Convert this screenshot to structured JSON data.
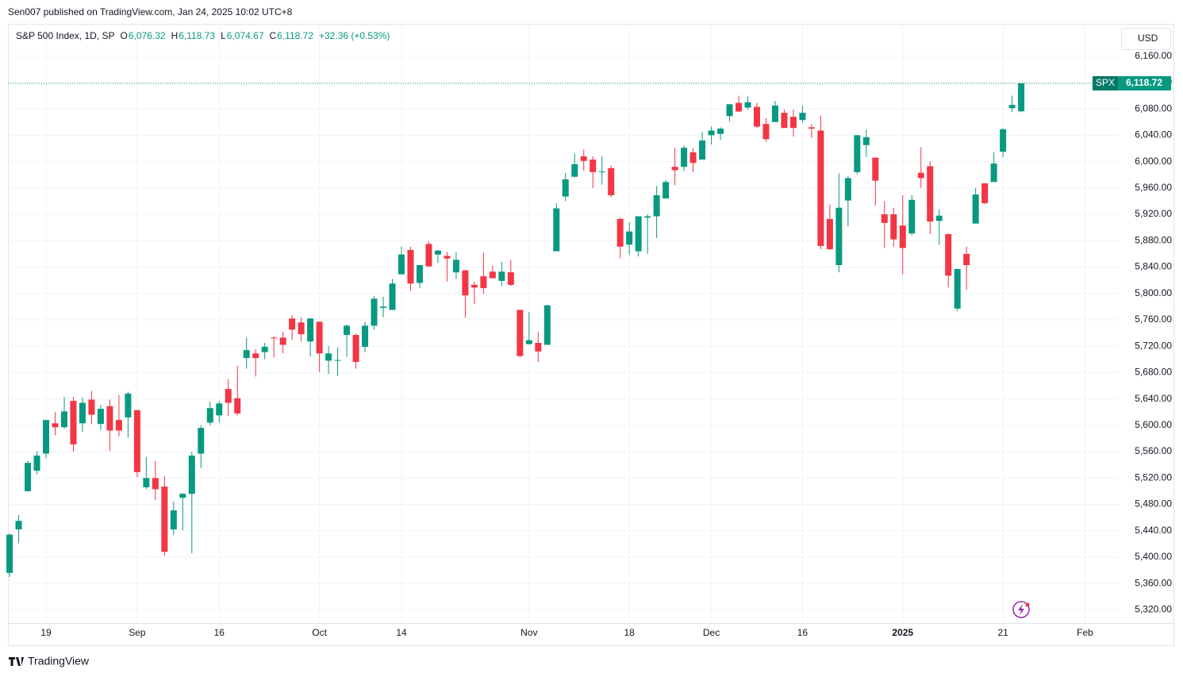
{
  "header": {
    "publisher": "Sen007 published on TradingView.com, Jan 24, 2025 10:02 UTC+8",
    "currency": "USD",
    "brand": "TradingView"
  },
  "chart_data": {
    "type": "candlestick",
    "title": "S&P 500 Index, 1D, SP",
    "legend": [
      {
        "key": "O",
        "text": "6,076.32"
      },
      {
        "key": "H",
        "text": "6,118.73"
      },
      {
        "key": "L",
        "text": "6,074.67"
      },
      {
        "key": "C",
        "text": "6,118.72"
      }
    ],
    "change": "+32.36 (+0.53%)",
    "last_price_label": {
      "symbol": "SPX",
      "text": "6,118.72"
    },
    "up_color": "#089981",
    "down_color": "#f23645",
    "grid": true,
    "open": [
      5376,
      5442,
      5500,
      5531,
      5557,
      5603,
      5597,
      5637,
      5603,
      5639,
      5602,
      5629,
      5608,
      5612,
      5623,
      5506,
      5520,
      5507,
      5442,
      5490,
      5496,
      5557,
      5604,
      5615,
      5655,
      5641,
      5702,
      5709,
      5711,
      5733,
      5733,
      5762,
      5756,
      5727,
      5757,
      5698,
      5698,
      5737,
      5737,
      5719,
      5751,
      5778,
      5775,
      5829,
      5866,
      5816,
      5875,
      5859,
      5857,
      5832,
      5835,
      5813,
      5826,
      5833,
      5819,
      5832,
      5775,
      5723,
      5725,
      5722,
      5864,
      5947,
      5977,
      6008,
      6003,
      5985,
      5990,
      5913,
      5874,
      5864,
      5915,
      5917,
      5944,
      5992,
      5992,
      6014,
      6003,
      6040,
      6042,
      6069,
      6089,
      6082,
      6083,
      6057,
      6060,
      6074,
      6068,
      6063,
      6052,
      6047,
      5913,
      5843,
      5941,
      5984,
      6025,
      6006,
      5920,
      5920,
      5903,
      5891,
      5983,
      5993,
      5910,
      5890,
      5777,
      5860,
      5906,
      5967,
      5969,
      6015,
      6081,
      6076.32
    ],
    "high": [
      5436,
      5464,
      5546,
      5561,
      5608,
      5620,
      5643,
      5643,
      5642,
      5652,
      5631,
      5639,
      5646,
      5651,
      5623,
      5552,
      5546,
      5523,
      5484,
      5497,
      5560,
      5600,
      5636,
      5637,
      5670,
      5690,
      5733,
      5715,
      5725,
      5735,
      5742,
      5767,
      5764,
      5763,
      5757,
      5720,
      5718,
      5753,
      5739,
      5757,
      5796,
      5795,
      5822,
      5871,
      5871,
      5843,
      5879,
      5866,
      5863,
      5863,
      5836,
      5818,
      5862,
      5842,
      5848,
      5851,
      5775,
      5772,
      5742,
      5783,
      5937,
      5983,
      6012,
      6018,
      6008,
      6008,
      5994,
      5915,
      5908,
      5917,
      5920,
      5963,
      5972,
      6021,
      6025,
      6020,
      6045,
      6053,
      6052,
      6087,
      6100,
      6099,
      6089,
      6066,
      6092,
      6079,
      6079,
      6085,
      6057,
      6070,
      5935,
      5982,
      5978,
      6040,
      6049,
      6006,
      5940,
      5930,
      5949,
      5949,
      6022,
      6000,
      5927,
      5891,
      5838,
      5871,
      5960,
      5967,
      6014,
      6051,
      6100,
      6118.73
    ],
    "low": [
      5370,
      5421,
      5500,
      5526,
      5550,
      5585,
      5595,
      5560,
      5590,
      5602,
      5593,
      5561,
      5583,
      5581,
      5521,
      5503,
      5486,
      5402,
      5434,
      5441,
      5406,
      5535,
      5600,
      5604,
      5614,
      5615,
      5686,
      5674,
      5700,
      5703,
      5709,
      5729,
      5727,
      5704,
      5681,
      5678,
      5675,
      5704,
      5686,
      5711,
      5745,
      5764,
      5775,
      5829,
      5804,
      5808,
      5840,
      5846,
      5818,
      5822,
      5763,
      5784,
      5799,
      5823,
      5811,
      5811,
      5703,
      5723,
      5696,
      5722,
      5864,
      5940,
      5976,
      5986,
      5960,
      5965,
      5946,
      5853,
      5858,
      5856,
      5860,
      5884,
      5944,
      5964,
      5986,
      5984,
      6003,
      6026,
      6033,
      6061,
      6075,
      6079,
      6051,
      6030,
      6060,
      6051,
      6038,
      6059,
      6036,
      5867,
      5866,
      5832,
      5902,
      5981,
      6007,
      5933,
      5869,
      5871,
      5829,
      5888,
      5960,
      5890,
      5874,
      5809,
      5773,
      5805,
      5906,
      5935,
      5969,
      6007,
      6075,
      6074.67
    ],
    "close": [
      5434,
      5455,
      5543,
      5554,
      5608,
      5597,
      5621,
      5571,
      5634,
      5616,
      5625,
      5592,
      5592,
      5648,
      5529,
      5520,
      5503,
      5408,
      5471,
      5496,
      5554,
      5596,
      5626,
      5633,
      5634,
      5618,
      5714,
      5702,
      5719,
      5732,
      5722,
      5745,
      5738,
      5762,
      5709,
      5709,
      5699,
      5751,
      5696,
      5751,
      5792,
      5780,
      5815,
      5859,
      5815,
      5843,
      5841,
      5865,
      5853,
      5851,
      5797,
      5809,
      5808,
      5823,
      5833,
      5813,
      5705,
      5729,
      5712,
      5782,
      5929,
      5973,
      5996,
      6001,
      5984,
      5985,
      5949,
      5871,
      5894,
      5917,
      5917,
      5949,
      5969,
      5987,
      6021,
      5998,
      6032,
      6047,
      6050,
      6087,
      6076,
      6090,
      6053,
      6034,
      6085,
      6051,
      6051,
      6074,
      6050,
      5872,
      5867,
      5930,
      5975,
      6040,
      6037,
      5971,
      5907,
      5882,
      5869,
      5942,
      5975,
      5909,
      5918,
      5827,
      5837,
      5843,
      5950,
      5937,
      5997,
      6049,
      6086,
      6118.72
    ],
    "xlim": [
      -0.18,
      121.7
    ],
    "xticks": [
      {
        "value": 4,
        "label": "19"
      },
      {
        "value": 14,
        "label": "Sep"
      },
      {
        "value": 23,
        "label": "16"
      },
      {
        "value": 34,
        "label": "Oct"
      },
      {
        "value": 43,
        "label": "14"
      },
      {
        "value": 57,
        "label": "Nov"
      },
      {
        "value": 68,
        "label": "18"
      },
      {
        "value": 77,
        "label": "Dec"
      },
      {
        "value": 87,
        "label": "16"
      },
      {
        "value": 98,
        "label": "2025"
      },
      {
        "value": 109,
        "label": "21"
      },
      {
        "value": 118,
        "label": "Feb"
      }
    ],
    "ylim": [
      5300,
      6209
    ],
    "yticks": [
      {
        "value": 5320,
        "label": "5,320.00"
      },
      {
        "value": 5360,
        "label": "5,360.00"
      },
      {
        "value": 5400,
        "label": "5,400.00"
      },
      {
        "value": 5440,
        "label": "5,440.00"
      },
      {
        "value": 5480,
        "label": "5,480.00"
      },
      {
        "value": 5520,
        "label": "5,520.00"
      },
      {
        "value": 5560,
        "label": "5,560.00"
      },
      {
        "value": 5600,
        "label": "5,600.00"
      },
      {
        "value": 5640,
        "label": "5,640.00"
      },
      {
        "value": 5680,
        "label": "5,680.00"
      },
      {
        "value": 5720,
        "label": "5,720.00"
      },
      {
        "value": 5760,
        "label": "5,760.00"
      },
      {
        "value": 5800,
        "label": "5,800.00"
      },
      {
        "value": 5840,
        "label": "5,840.00"
      },
      {
        "value": 5880,
        "label": "5,880.00"
      },
      {
        "value": 5920,
        "label": "5,920.00"
      },
      {
        "value": 5960,
        "label": "5,960.00"
      },
      {
        "value": 6000,
        "label": "6,000.00"
      },
      {
        "value": 6040,
        "label": "6,040.00"
      },
      {
        "value": 6080,
        "label": "6,080.00"
      },
      {
        "value": 6120,
        "label": "6,120.00"
      },
      {
        "value": 6160,
        "label": "6,160.00"
      }
    ]
  }
}
